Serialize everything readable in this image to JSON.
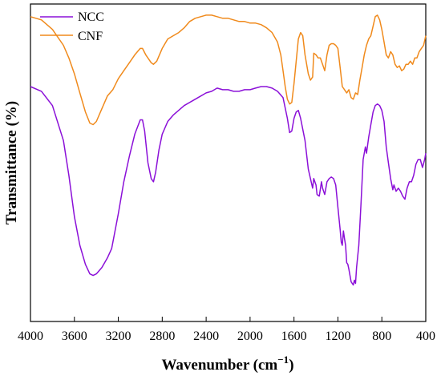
{
  "chart_data": {
    "type": "line",
    "xlabel": "Wavenumber (cm",
    "xlabel_sup": "−1",
    "xlabel_end": ")",
    "ylabel": "Transmittance (%)",
    "xlim": [
      4000,
      400
    ],
    "x_reversed": true,
    "xticks": [
      "4000",
      "3600",
      "3200",
      "2800",
      "2400",
      "2000",
      "1600",
      "1200",
      "800",
      "400"
    ],
    "xtick_values": [
      4000,
      3600,
      3200,
      2800,
      2400,
      2000,
      1600,
      1200,
      800,
      400
    ],
    "ylim": [
      0,
      100
    ],
    "yticks_shown": false,
    "grid": false,
    "legend_position": "top-left",
    "series": [
      {
        "name": "NCC",
        "color": "#8B10D8",
        "points": [
          [
            4000,
            74
          ],
          [
            3900,
            72.5
          ],
          [
            3800,
            68
          ],
          [
            3700,
            57
          ],
          [
            3650,
            46
          ],
          [
            3600,
            33
          ],
          [
            3550,
            24
          ],
          [
            3500,
            18
          ],
          [
            3460,
            15
          ],
          [
            3430,
            14.5
          ],
          [
            3400,
            15
          ],
          [
            3350,
            17
          ],
          [
            3300,
            20
          ],
          [
            3260,
            23
          ],
          [
            3200,
            34
          ],
          [
            3150,
            44
          ],
          [
            3100,
            52
          ],
          [
            3050,
            59
          ],
          [
            3000,
            63.5
          ],
          [
            2980,
            63.5
          ],
          [
            2960,
            60
          ],
          [
            2930,
            50
          ],
          [
            2900,
            45
          ],
          [
            2880,
            44
          ],
          [
            2860,
            47
          ],
          [
            2830,
            54
          ],
          [
            2800,
            59
          ],
          [
            2750,
            63
          ],
          [
            2700,
            65
          ],
          [
            2600,
            68
          ],
          [
            2500,
            70
          ],
          [
            2400,
            72
          ],
          [
            2350,
            72.5
          ],
          [
            2300,
            73.5
          ],
          [
            2250,
            73
          ],
          [
            2200,
            73
          ],
          [
            2150,
            72.5
          ],
          [
            2100,
            72.5
          ],
          [
            2050,
            73
          ],
          [
            2000,
            73
          ],
          [
            1950,
            73.5
          ],
          [
            1900,
            74
          ],
          [
            1850,
            74
          ],
          [
            1800,
            73.5
          ],
          [
            1750,
            72.5
          ],
          [
            1700,
            70.5
          ],
          [
            1660,
            64
          ],
          [
            1640,
            59.5
          ],
          [
            1620,
            60
          ],
          [
            1600,
            64
          ],
          [
            1580,
            66
          ],
          [
            1560,
            66.5
          ],
          [
            1540,
            64
          ],
          [
            1500,
            57
          ],
          [
            1470,
            48
          ],
          [
            1450,
            45
          ],
          [
            1430,
            42
          ],
          [
            1420,
            45
          ],
          [
            1400,
            43
          ],
          [
            1390,
            40
          ],
          [
            1370,
            39.5
          ],
          [
            1350,
            44
          ],
          [
            1340,
            42
          ],
          [
            1320,
            40
          ],
          [
            1300,
            44
          ],
          [
            1280,
            45
          ],
          [
            1260,
            45.5
          ],
          [
            1240,
            45
          ],
          [
            1220,
            43
          ],
          [
            1200,
            36
          ],
          [
            1180,
            29
          ],
          [
            1170,
            25
          ],
          [
            1160,
            24
          ],
          [
            1150,
            28.5
          ],
          [
            1140,
            26
          ],
          [
            1130,
            24
          ],
          [
            1120,
            18.5
          ],
          [
            1110,
            18
          ],
          [
            1100,
            16.5
          ],
          [
            1080,
            12.5
          ],
          [
            1060,
            11.5
          ],
          [
            1050,
            13
          ],
          [
            1040,
            12
          ],
          [
            1030,
            17
          ],
          [
            1010,
            24
          ],
          [
            990,
            37
          ],
          [
            970,
            51
          ],
          [
            950,
            55
          ],
          [
            940,
            53
          ],
          [
            920,
            58
          ],
          [
            900,
            62
          ],
          [
            880,
            66
          ],
          [
            860,
            68
          ],
          [
            840,
            68.5
          ],
          [
            820,
            68
          ],
          [
            800,
            66.5
          ],
          [
            780,
            63
          ],
          [
            760,
            55
          ],
          [
            740,
            50
          ],
          [
            720,
            45
          ],
          [
            700,
            41.5
          ],
          [
            690,
            43
          ],
          [
            670,
            41
          ],
          [
            650,
            42
          ],
          [
            630,
            41
          ],
          [
            610,
            39.5
          ],
          [
            590,
            38.5
          ],
          [
            570,
            42
          ],
          [
            550,
            44
          ],
          [
            530,
            44
          ],
          [
            510,
            46
          ],
          [
            490,
            49.5
          ],
          [
            470,
            51
          ],
          [
            450,
            51
          ],
          [
            430,
            48.5
          ],
          [
            410,
            51
          ],
          [
            400,
            53
          ]
        ]
      },
      {
        "name": "CNF",
        "color": "#F08A1C",
        "points": [
          [
            4000,
            96
          ],
          [
            3900,
            95
          ],
          [
            3800,
            92
          ],
          [
            3700,
            87
          ],
          [
            3650,
            83
          ],
          [
            3600,
            78
          ],
          [
            3550,
            72
          ],
          [
            3500,
            66
          ],
          [
            3460,
            62.5
          ],
          [
            3430,
            62
          ],
          [
            3400,
            63
          ],
          [
            3350,
            67
          ],
          [
            3300,
            71
          ],
          [
            3250,
            73
          ],
          [
            3200,
            76.5
          ],
          [
            3150,
            79
          ],
          [
            3100,
            81.5
          ],
          [
            3050,
            84
          ],
          [
            3000,
            86
          ],
          [
            2980,
            86
          ],
          [
            2950,
            84
          ],
          [
            2900,
            81.5
          ],
          [
            2880,
            81
          ],
          [
            2850,
            82
          ],
          [
            2800,
            86
          ],
          [
            2750,
            89
          ],
          [
            2700,
            90
          ],
          [
            2650,
            91
          ],
          [
            2600,
            92.5
          ],
          [
            2550,
            94.5
          ],
          [
            2500,
            95.5
          ],
          [
            2450,
            96
          ],
          [
            2400,
            96.5
          ],
          [
            2350,
            96.5
          ],
          [
            2300,
            96
          ],
          [
            2250,
            95.5
          ],
          [
            2200,
            95.5
          ],
          [
            2150,
            95
          ],
          [
            2100,
            94.5
          ],
          [
            2050,
            94.5
          ],
          [
            2000,
            94
          ],
          [
            1950,
            94
          ],
          [
            1900,
            93.5
          ],
          [
            1850,
            92.5
          ],
          [
            1800,
            91
          ],
          [
            1750,
            88
          ],
          [
            1720,
            84
          ],
          [
            1700,
            79
          ],
          [
            1680,
            74
          ],
          [
            1660,
            70
          ],
          [
            1640,
            68.5
          ],
          [
            1620,
            69
          ],
          [
            1600,
            75
          ],
          [
            1580,
            82
          ],
          [
            1560,
            89
          ],
          [
            1540,
            91
          ],
          [
            1520,
            90
          ],
          [
            1500,
            84
          ],
          [
            1470,
            78
          ],
          [
            1450,
            76
          ],
          [
            1430,
            77
          ],
          [
            1420,
            84.5
          ],
          [
            1400,
            84
          ],
          [
            1380,
            83
          ],
          [
            1360,
            83
          ],
          [
            1340,
            81
          ],
          [
            1320,
            79
          ],
          [
            1300,
            84
          ],
          [
            1280,
            87
          ],
          [
            1260,
            87.5
          ],
          [
            1240,
            87.5
          ],
          [
            1220,
            87
          ],
          [
            1200,
            86
          ],
          [
            1180,
            80
          ],
          [
            1160,
            74
          ],
          [
            1140,
            73
          ],
          [
            1120,
            72
          ],
          [
            1100,
            73
          ],
          [
            1080,
            70.5
          ],
          [
            1060,
            70
          ],
          [
            1040,
            72
          ],
          [
            1020,
            71.5
          ],
          [
            1000,
            76
          ],
          [
            980,
            80
          ],
          [
            960,
            84
          ],
          [
            940,
            87
          ],
          [
            920,
            89
          ],
          [
            900,
            90
          ],
          [
            880,
            93
          ],
          [
            860,
            96
          ],
          [
            840,
            96.5
          ],
          [
            820,
            95
          ],
          [
            800,
            92
          ],
          [
            780,
            88
          ],
          [
            760,
            84
          ],
          [
            740,
            83
          ],
          [
            720,
            85
          ],
          [
            700,
            84
          ],
          [
            680,
            81
          ],
          [
            660,
            80
          ],
          [
            640,
            80.5
          ],
          [
            620,
            79
          ],
          [
            600,
            79.5
          ],
          [
            580,
            81
          ],
          [
            560,
            81
          ],
          [
            540,
            82
          ],
          [
            520,
            81
          ],
          [
            500,
            83
          ],
          [
            480,
            83
          ],
          [
            460,
            85
          ],
          [
            440,
            86
          ],
          [
            420,
            87
          ],
          [
            400,
            90
          ]
        ]
      }
    ]
  }
}
